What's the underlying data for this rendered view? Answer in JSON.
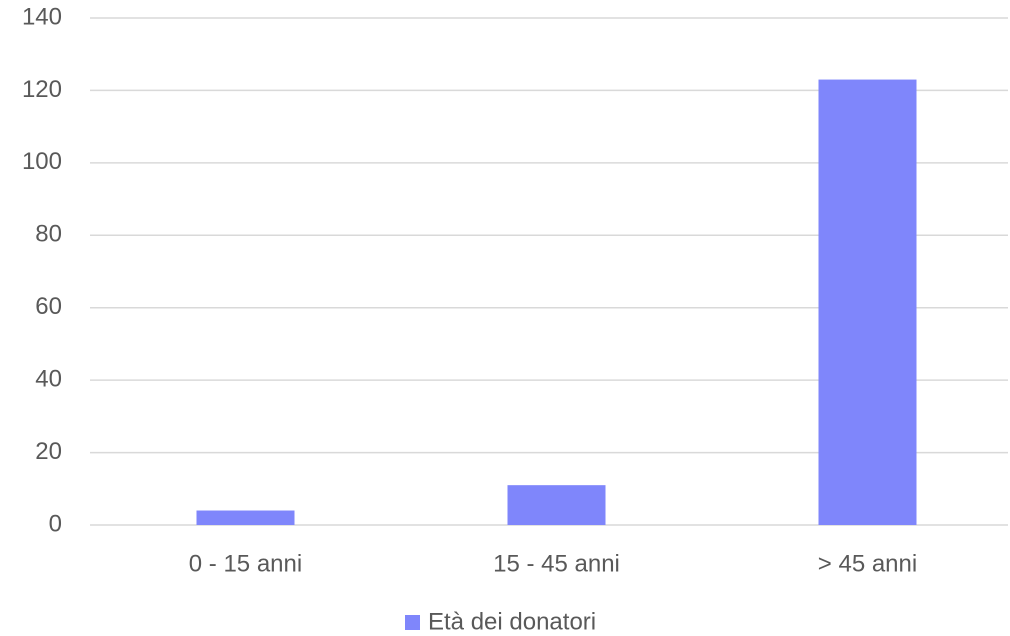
{
  "chart_data": {
    "type": "bar",
    "categories": [
      "0 - 15 anni",
      "15 - 45 anni",
      "> 45 anni"
    ],
    "series": [
      {
        "name": "Età dei donatori",
        "color": "#7f86fb",
        "values": [
          4,
          11,
          123
        ]
      }
    ],
    "ylim": [
      0,
      140
    ],
    "yticks": [
      0,
      20,
      40,
      60,
      80,
      100,
      120,
      140
    ],
    "grid": true,
    "legend": "bottom"
  }
}
